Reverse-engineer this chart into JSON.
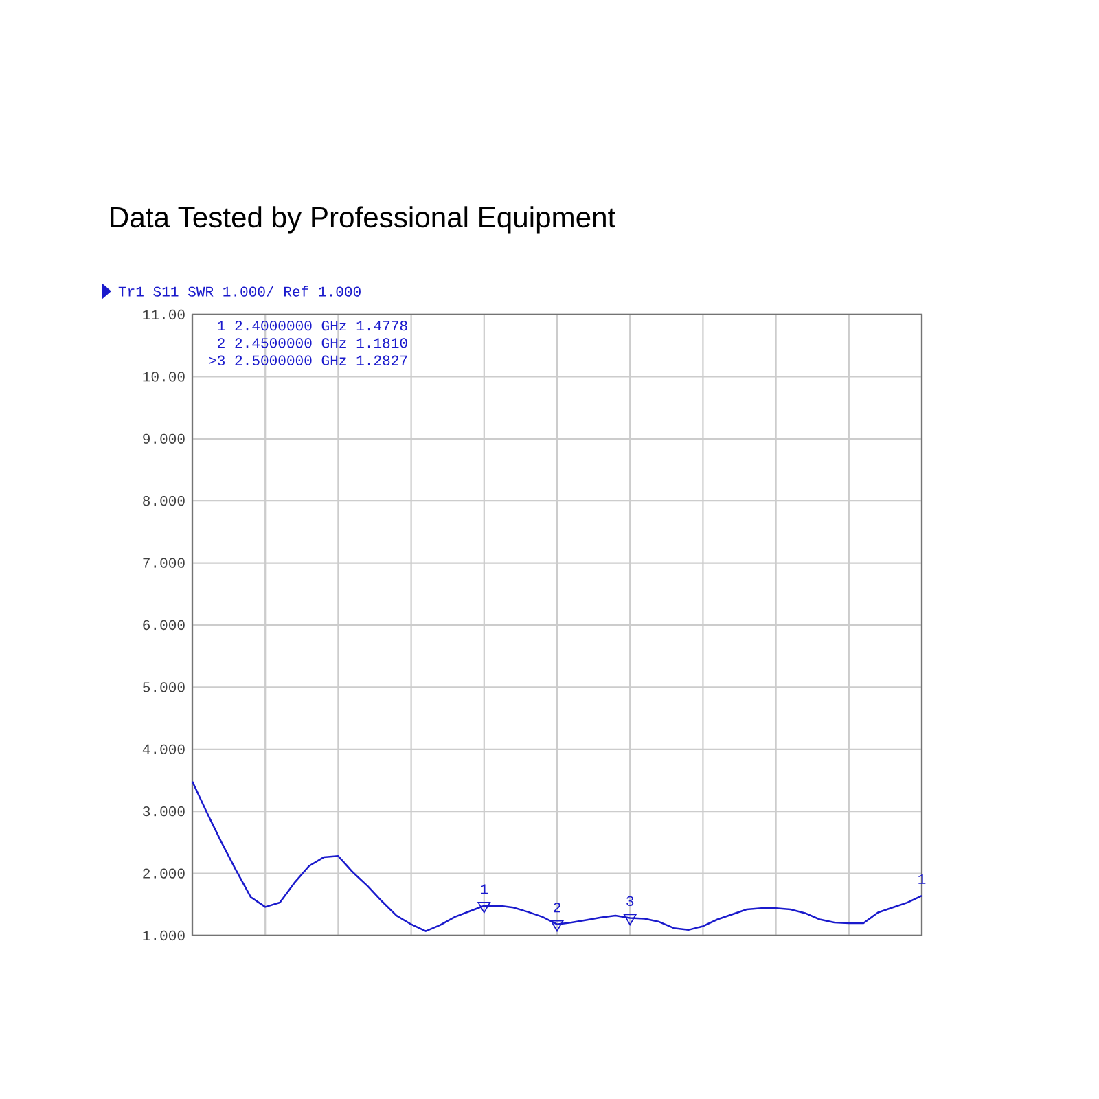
{
  "chart_data": {
    "type": "line",
    "title": "Data Tested by Professional Equipment",
    "subtitle": "Tr1 S11 SWR 1.000/ Ref 1.000",
    "categories": [
      null,
      null,
      null,
      null,
      null,
      null,
      null,
      null,
      null,
      null,
      null,
      null,
      null,
      null,
      null,
      null,
      null,
      null,
      null,
      null,
      null,
      null,
      null,
      null,
      null,
      null,
      null,
      null,
      null,
      null,
      null,
      null,
      null,
      null,
      null,
      null,
      null,
      null,
      null,
      null,
      null,
      null,
      null,
      null,
      null,
      null,
      null,
      null,
      null,
      null,
      null
    ],
    "series": [
      {
        "color": "#1a1acc",
        "values": [
          3.48,
          2.98,
          2.5,
          2.05,
          1.62,
          1.46,
          1.53,
          1.85,
          2.12,
          2.26,
          2.28,
          2.02,
          1.8,
          1.55,
          1.32,
          1.18,
          1.07,
          1.17,
          1.3,
          1.39,
          1.4778,
          1.48,
          1.45,
          1.38,
          1.3,
          1.181,
          1.21,
          1.25,
          1.29,
          1.32,
          1.2827,
          1.27,
          1.22,
          1.12,
          1.09,
          1.15,
          1.26,
          1.34,
          1.42,
          1.44,
          1.44,
          1.42,
          1.36,
          1.26,
          1.21,
          1.2,
          1.2,
          1.37,
          1.45,
          1.53,
          1.64
        ]
      },
      {
        "type": "scatter",
        "marker": "triangle",
        "color": "#1a1acc",
        "values": [
          null,
          null,
          null,
          null,
          null,
          null,
          null,
          null,
          null,
          null,
          null,
          null,
          null,
          null,
          null,
          null,
          null,
          null,
          null,
          null,
          1.4778,
          null,
          null,
          null,
          null,
          1.181,
          null,
          null,
          null,
          null,
          1.2827,
          null,
          null,
          null,
          null,
          null,
          null,
          null,
          null,
          null,
          null,
          null,
          null,
          null,
          null,
          null,
          null,
          null,
          null,
          null,
          null
        ]
      }
    ],
    "ylim": [
      1,
      11
    ],
    "yticks": [
      {
        "value": 1,
        "label": "1.000"
      },
      {
        "value": 2,
        "label": "2.000"
      },
      {
        "value": 3,
        "label": "3.000"
      },
      {
        "value": 4,
        "label": "4.000"
      },
      {
        "value": 5,
        "label": "5.000"
      },
      {
        "value": 6,
        "label": "6.000"
      },
      {
        "value": 7,
        "label": "7.000"
      },
      {
        "value": 8,
        "label": "8.000"
      },
      {
        "value": 9,
        "label": "9.000"
      },
      {
        "value": 10,
        "label": "10.00"
      },
      {
        "value": 11,
        "label": "11.00"
      }
    ],
    "grid": true,
    "tick_labels": "y",
    "annotations": [
      " 1  2.4000000 GHz  1.4778",
      " 2  2.4500000 GHz  1.1810",
      ">3  2.5000000 GHz  1.2827",
      {
        "text": "1",
        "y": 1.4778
      },
      {
        "text": "2",
        "y": 1.181
      },
      {
        "text": "3",
        "y": 1.2827
      },
      {
        "text": "1",
        "y": 1.64
      }
    ]
  }
}
